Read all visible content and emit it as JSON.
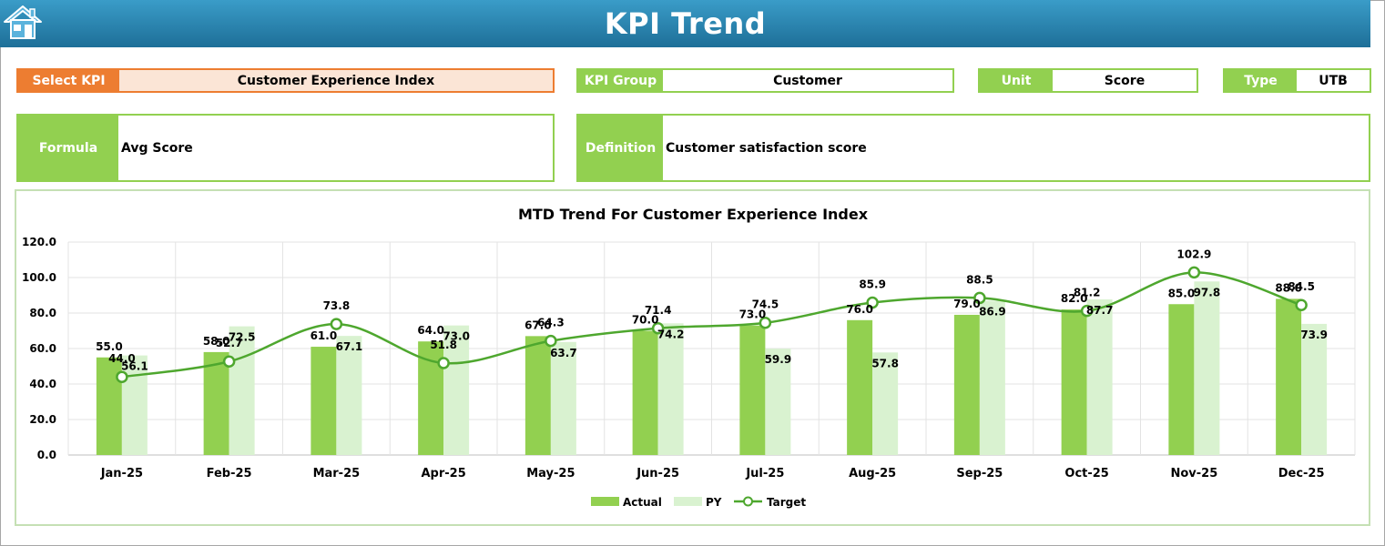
{
  "header": {
    "title": "KPI Trend",
    "home_icon": "home-icon"
  },
  "fields": {
    "select_kpi": {
      "label": "Select KPI",
      "value": "Customer Experience Index"
    },
    "kpi_group": {
      "label": "KPI Group",
      "value": "Customer"
    },
    "unit": {
      "label": "Unit",
      "value": "Score"
    },
    "type": {
      "label": "Type",
      "value": "UTB"
    },
    "formula": {
      "label": "Formula",
      "value": "Avg Score"
    },
    "definition": {
      "label": "Definition",
      "value": "Customer satisfaction score"
    }
  },
  "colors": {
    "header": "#2a86b4",
    "kpi_accent": "#ed7d31",
    "green": "#92d050",
    "actual": "#92d050",
    "py": "#d9f2d0",
    "target": "#4ea72e"
  },
  "chart_data": {
    "type": "bar",
    "title": "MTD Trend For Customer Experience Index",
    "categories": [
      "Jan-25",
      "Feb-25",
      "Mar-25",
      "Apr-25",
      "May-25",
      "Jun-25",
      "Jul-25",
      "Aug-25",
      "Sep-25",
      "Oct-25",
      "Nov-25",
      "Dec-25"
    ],
    "series": [
      {
        "name": "Actual",
        "kind": "bar",
        "values": [
          55.0,
          58.0,
          61.0,
          64.0,
          67.0,
          70.0,
          73.0,
          76.0,
          79.0,
          82.0,
          85.0,
          88.0
        ]
      },
      {
        "name": "PY",
        "kind": "bar",
        "values": [
          56.1,
          72.5,
          67.1,
          73.0,
          63.7,
          74.2,
          59.9,
          57.8,
          86.9,
          87.7,
          97.8,
          73.9
        ]
      },
      {
        "name": "Target",
        "kind": "line",
        "values": [
          44.0,
          52.7,
          73.8,
          51.8,
          64.3,
          71.4,
          74.5,
          85.9,
          88.5,
          81.2,
          102.9,
          84.5
        ]
      }
    ],
    "ylim": [
      0,
      120
    ],
    "yticks": [
      "0.0",
      "20.0",
      "40.0",
      "60.0",
      "80.0",
      "100.0",
      "120.0"
    ],
    "grid": true,
    "legend_position": "bottom"
  }
}
